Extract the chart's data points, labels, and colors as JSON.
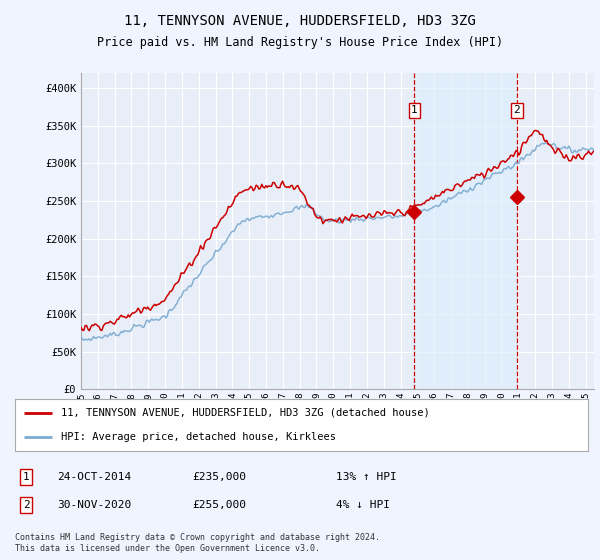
{
  "title": "11, TENNYSON AVENUE, HUDDERSFIELD, HD3 3ZG",
  "subtitle": "Price paid vs. HM Land Registry's House Price Index (HPI)",
  "ylabel_ticks": [
    "£0",
    "£50K",
    "£100K",
    "£150K",
    "£200K",
    "£250K",
    "£300K",
    "£350K",
    "£400K"
  ],
  "ytick_values": [
    0,
    50000,
    100000,
    150000,
    200000,
    250000,
    300000,
    350000,
    400000
  ],
  "ylim": [
    0,
    420000
  ],
  "xlim_start": 1995.0,
  "xlim_end": 2025.5,
  "background_color": "#f0f4ff",
  "plot_bg_color": "#e8eef8",
  "grid_color": "#ffffff",
  "red_line_color": "#cc0000",
  "blue_line_color": "#7aaad0",
  "shade_color": "#ddeeff",
  "marker1_x": 2014.82,
  "marker1_y": 235000,
  "marker2_x": 2020.92,
  "marker2_y": 255000,
  "legend_line1": "11, TENNYSON AVENUE, HUDDERSFIELD, HD3 3ZG (detached house)",
  "legend_line2": "HPI: Average price, detached house, Kirklees",
  "note1_date": "24-OCT-2014",
  "note1_price": "£235,000",
  "note1_hpi": "13% ↑ HPI",
  "note2_date": "30-NOV-2020",
  "note2_price": "£255,000",
  "note2_hpi": "4% ↓ HPI",
  "footer": "Contains HM Land Registry data © Crown copyright and database right 2024.\nThis data is licensed under the Open Government Licence v3.0."
}
